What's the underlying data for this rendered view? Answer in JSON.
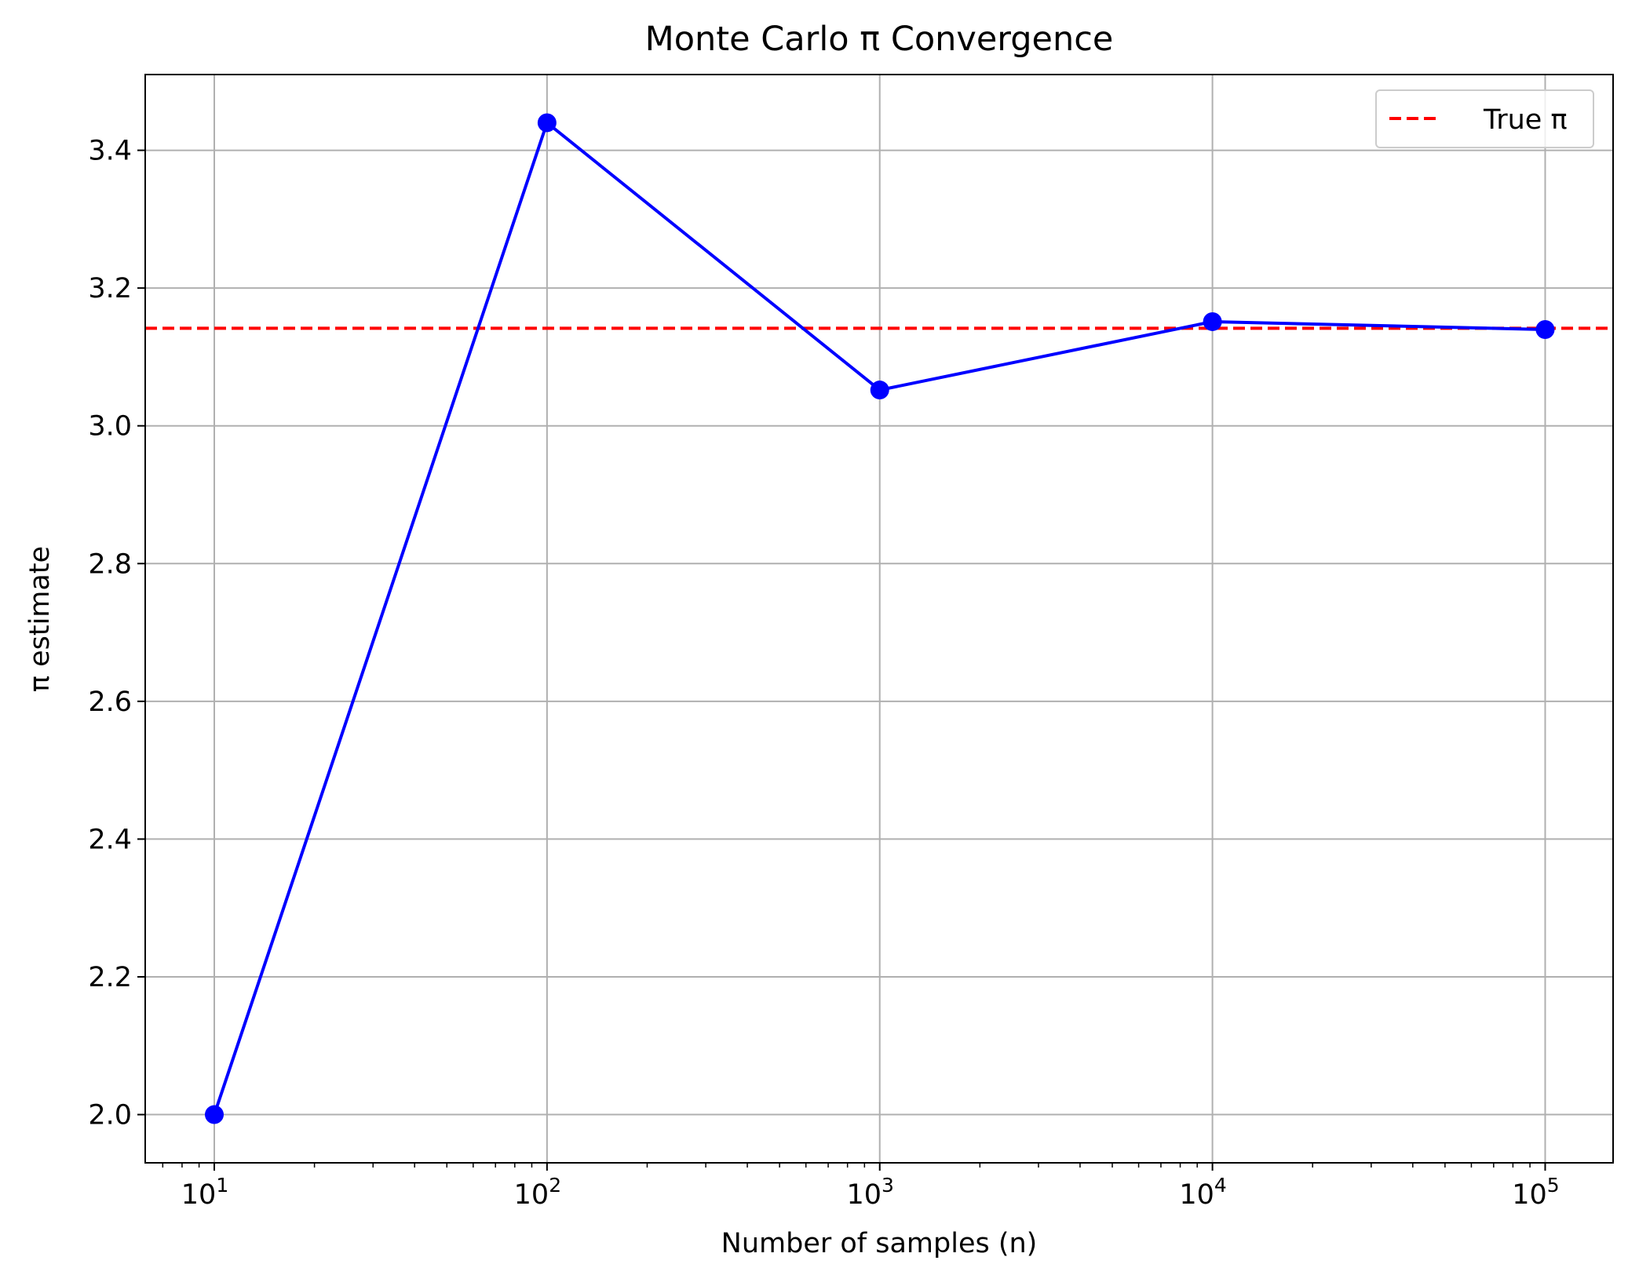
{
  "chart_data": {
    "type": "line",
    "title": "Monte Carlo π Convergence",
    "xlabel": "Number of samples (n)",
    "ylabel": "π estimate",
    "xscale": "log",
    "xlim": [
      6.2,
      160000
    ],
    "ylim": [
      1.93,
      3.51
    ],
    "grid": true,
    "legend_position": "top-right",
    "x_ticks": [
      {
        "value": 10,
        "base": "10",
        "exp": "1"
      },
      {
        "value": 100,
        "base": "10",
        "exp": "2"
      },
      {
        "value": 1000,
        "base": "10",
        "exp": "3"
      },
      {
        "value": 10000,
        "base": "10",
        "exp": "4"
      },
      {
        "value": 100000,
        "base": "10",
        "exp": "5"
      }
    ],
    "y_ticks": [
      2.0,
      2.2,
      2.4,
      2.6,
      2.8,
      3.0,
      3.2,
      3.4
    ],
    "series": [
      {
        "x": [
          10,
          100,
          1000,
          10000,
          100000
        ],
        "y": [
          2.0,
          3.44,
          3.052,
          3.1512,
          3.1398
        ],
        "color": "#0000ff",
        "marker": "circle"
      }
    ],
    "reference_lines": [
      {
        "name": "True π",
        "y": 3.14159,
        "color": "#ff0000",
        "style": "dashed"
      }
    ]
  }
}
